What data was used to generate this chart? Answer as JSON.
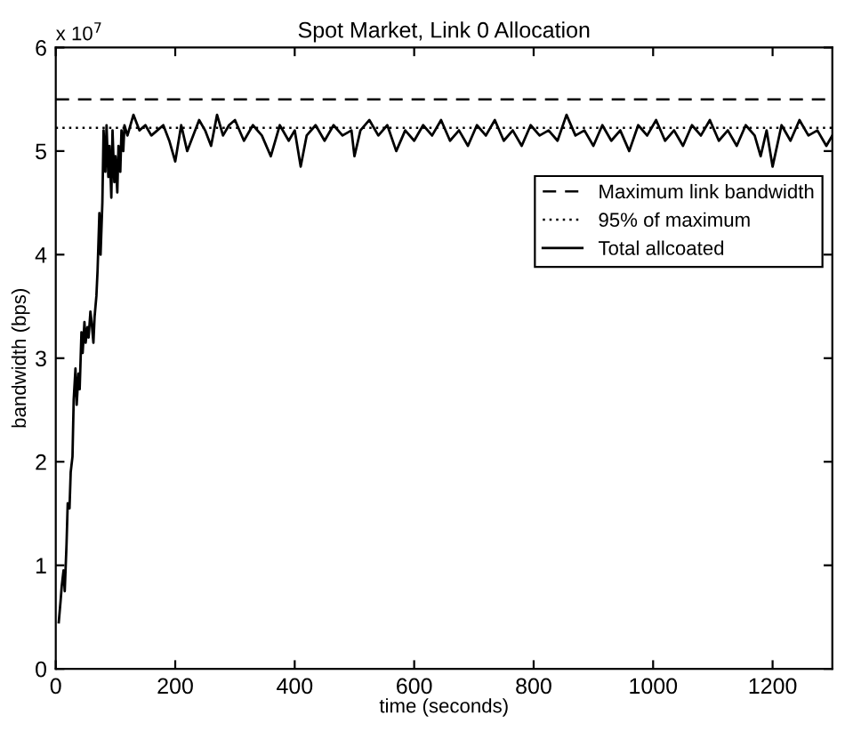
{
  "chart_data": {
    "type": "line",
    "title": "Spot Market, Link 0 Allocation",
    "xlabel": "time (seconds)",
    "ylabel": "bandwidth (bps)",
    "annotations": [
      "x 10$^{7}$"
    ],
    "xlim": [
      0,
      1300
    ],
    "xticks": [
      0,
      200,
      400,
      600,
      800,
      1000,
      1200
    ],
    "ylim": [
      0,
      6
    ],
    "yticks": [
      0,
      1,
      2,
      3,
      4,
      5,
      6
    ],
    "grid": false,
    "legend": "right",
    "line_style": "solid",
    "marker": "none",
    "ref_lines": [
      {
        "axis": "y",
        "value": 5.5,
        "label": "Maximum link bandwidth",
        "color": "#000000",
        "line_style": "dashed"
      },
      {
        "axis": "y",
        "value": 5.225,
        "label": "95% of maximum",
        "color": "#000000",
        "line_style": "dotted"
      }
    ],
    "series": [
      {
        "name": "Total allcoated",
        "color": "#000000",
        "x": [
          5,
          8,
          10,
          13,
          15,
          18,
          20,
          23,
          25,
          28,
          30,
          33,
          35,
          38,
          40,
          43,
          45,
          48,
          50,
          53,
          55,
          58,
          60,
          63,
          65,
          68,
          70,
          73,
          75,
          78,
          80,
          83,
          85,
          88,
          90,
          93,
          95,
          98,
          100,
          103,
          105,
          108,
          110,
          113,
          115,
          120,
          130,
          140,
          150,
          160,
          170,
          180,
          190,
          200,
          210,
          220,
          230,
          240,
          250,
          260,
          270,
          280,
          290,
          300,
          315,
          330,
          345,
          360,
          375,
          390,
          400,
          410,
          420,
          435,
          450,
          465,
          480,
          495,
          500,
          510,
          525,
          540,
          555,
          570,
          585,
          600,
          615,
          630,
          645,
          660,
          675,
          690,
          705,
          720,
          735,
          750,
          765,
          780,
          795,
          810,
          825,
          840,
          855,
          870,
          885,
          900,
          915,
          930,
          945,
          960,
          975,
          990,
          1005,
          1020,
          1035,
          1050,
          1065,
          1080,
          1095,
          1110,
          1125,
          1140,
          1155,
          1170,
          1180,
          1190,
          1200,
          1215,
          1230,
          1245,
          1260,
          1275,
          1290,
          1300
        ],
        "values": [
          0.45,
          0.65,
          0.8,
          0.95,
          0.75,
          1.2,
          1.6,
          1.55,
          1.9,
          2.05,
          2.6,
          2.9,
          2.55,
          2.85,
          2.7,
          3.25,
          3.05,
          3.35,
          3.15,
          3.3,
          3.2,
          3.45,
          3.35,
          3.15,
          3.4,
          3.6,
          3.85,
          4.4,
          4.0,
          4.5,
          5.2,
          4.8,
          5.25,
          4.75,
          5.05,
          4.55,
          5.2,
          4.7,
          4.95,
          4.6,
          5.05,
          4.8,
          5.2,
          5.0,
          5.25,
          5.15,
          5.35,
          5.2,
          5.25,
          5.15,
          5.2,
          5.25,
          5.1,
          4.9,
          5.25,
          5.0,
          5.15,
          5.3,
          5.2,
          5.05,
          5.35,
          5.15,
          5.25,
          5.3,
          5.1,
          5.25,
          5.15,
          4.95,
          5.25,
          5.1,
          5.2,
          4.85,
          5.15,
          5.25,
          5.1,
          5.25,
          5.15,
          5.2,
          4.95,
          5.2,
          5.3,
          5.15,
          5.25,
          5.0,
          5.2,
          5.1,
          5.25,
          5.15,
          5.3,
          5.1,
          5.2,
          5.05,
          5.25,
          5.15,
          5.3,
          5.1,
          5.2,
          5.05,
          5.25,
          5.15,
          5.2,
          5.1,
          5.35,
          5.15,
          5.2,
          5.05,
          5.25,
          5.1,
          5.2,
          5.0,
          5.25,
          5.15,
          5.3,
          5.1,
          5.2,
          5.05,
          5.25,
          5.15,
          5.3,
          5.1,
          5.2,
          5.05,
          5.25,
          5.15,
          4.95,
          5.2,
          4.85,
          5.25,
          5.1,
          5.3,
          5.15,
          5.2,
          5.05,
          5.15
        ]
      }
    ]
  }
}
